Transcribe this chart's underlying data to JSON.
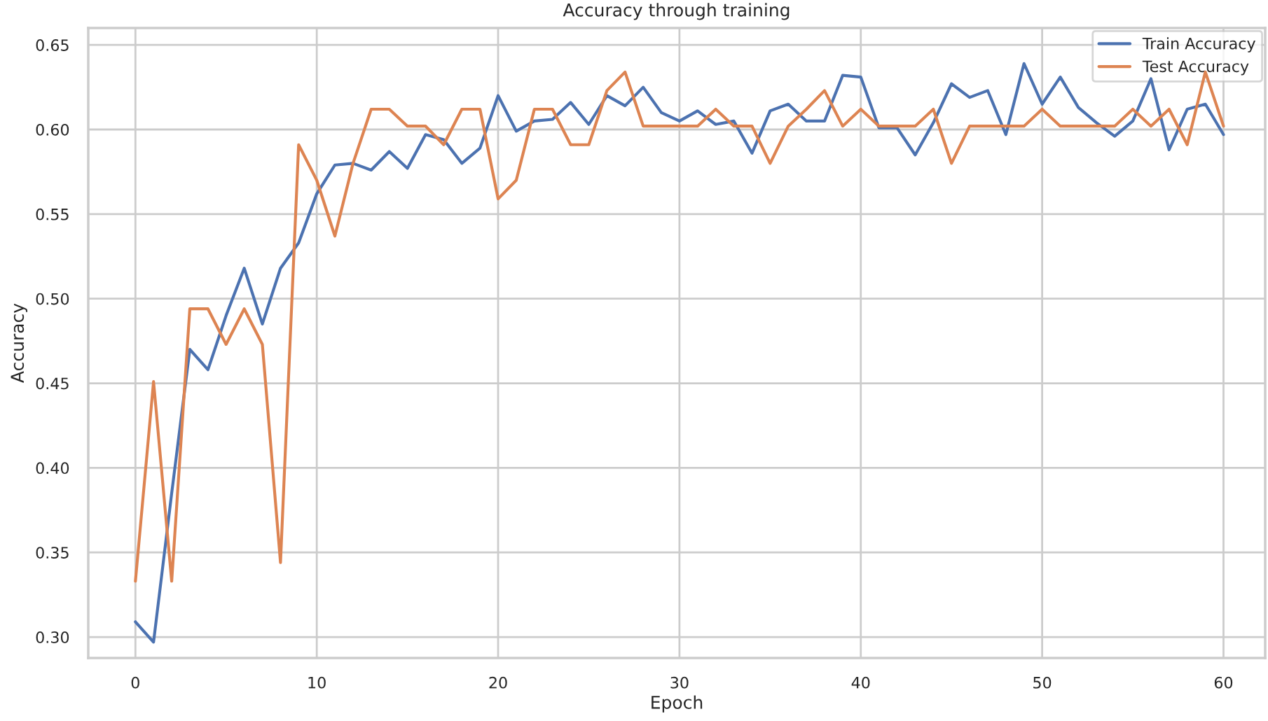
{
  "chart_data": {
    "type": "line",
    "title": "Accuracy through training",
    "xlabel": "Epoch",
    "ylabel": "Accuracy",
    "x": [
      0,
      1,
      2,
      3,
      4,
      5,
      6,
      7,
      8,
      9,
      10,
      11,
      12,
      13,
      14,
      15,
      16,
      17,
      18,
      19,
      20,
      21,
      22,
      23,
      24,
      25,
      26,
      27,
      28,
      29,
      30,
      31,
      32,
      33,
      34,
      35,
      36,
      37,
      38,
      39,
      40,
      41,
      42,
      43,
      44,
      45,
      46,
      47,
      48,
      49,
      50,
      51,
      52,
      53,
      54,
      55,
      56,
      57,
      58,
      59,
      60
    ],
    "series": [
      {
        "name": "Train Accuracy",
        "color": "#4c72b0",
        "values": [
          0.309,
          0.297,
          0.385,
          0.47,
          0.458,
          0.49,
          0.518,
          0.485,
          0.518,
          0.533,
          0.562,
          0.579,
          0.58,
          0.576,
          0.587,
          0.577,
          0.597,
          0.594,
          0.58,
          0.589,
          0.62,
          0.599,
          0.605,
          0.606,
          0.616,
          0.603,
          0.62,
          0.614,
          0.625,
          0.61,
          0.605,
          0.611,
          0.603,
          0.605,
          0.586,
          0.611,
          0.615,
          0.605,
          0.605,
          0.632,
          0.631,
          0.601,
          0.601,
          0.585,
          0.604,
          0.627,
          0.619,
          0.623,
          0.597,
          0.639,
          0.615,
          0.631,
          0.613,
          0.604,
          0.596,
          0.605,
          0.63,
          0.588,
          0.612,
          0.615,
          0.597
        ]
      },
      {
        "name": "Test Accuracy",
        "color": "#dd8452",
        "values": [
          0.333,
          0.451,
          0.333,
          0.494,
          0.494,
          0.473,
          0.494,
          0.473,
          0.344,
          0.591,
          0.57,
          0.537,
          0.58,
          0.612,
          0.612,
          0.602,
          0.602,
          0.591,
          0.612,
          0.612,
          0.559,
          0.57,
          0.612,
          0.612,
          0.591,
          0.591,
          0.623,
          0.634,
          0.602,
          0.602,
          0.602,
          0.602,
          0.612,
          0.602,
          0.602,
          0.58,
          0.602,
          0.612,
          0.623,
          0.602,
          0.612,
          0.602,
          0.602,
          0.602,
          0.612,
          0.58,
          0.602,
          0.602,
          0.602,
          0.602,
          0.612,
          0.602,
          0.602,
          0.602,
          0.602,
          0.612,
          0.602,
          0.612,
          0.591,
          0.634,
          0.602
        ]
      }
    ],
    "xlim": [
      -2.6,
      62.3
    ],
    "ylim": [
      0.2876,
      0.66
    ],
    "xticks": [
      0,
      10,
      20,
      30,
      40,
      50,
      60
    ],
    "yticks": [
      {
        "value": 0.3,
        "label": "0.30"
      },
      {
        "value": 0.35,
        "label": "0.35"
      },
      {
        "value": 0.4,
        "label": "0.40"
      },
      {
        "value": 0.45,
        "label": "0.45"
      },
      {
        "value": 0.5,
        "label": "0.50"
      },
      {
        "value": 0.55,
        "label": "0.55"
      },
      {
        "value": 0.6,
        "label": "0.60"
      },
      {
        "value": 0.65,
        "label": "0.65"
      }
    ],
    "grid": true,
    "legend": "top right",
    "marker": "none",
    "line_style": "solid"
  }
}
